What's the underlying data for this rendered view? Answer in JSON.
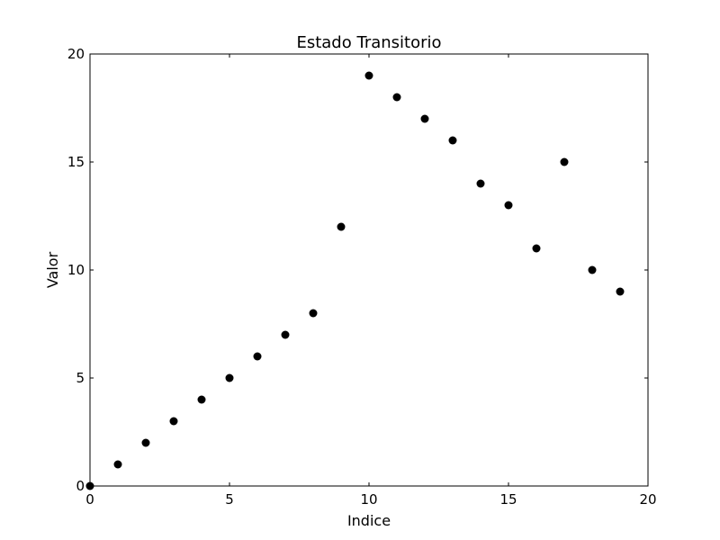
{
  "chart_data": {
    "type": "scatter",
    "title": "Estado Transitorio",
    "xlabel": "Indice",
    "ylabel": "Valor",
    "xlim": [
      0,
      20
    ],
    "ylim": [
      0,
      20
    ],
    "xticks": [
      "0",
      "5",
      "10",
      "15",
      "20"
    ],
    "yticks": [
      "0",
      "5",
      "10",
      "15",
      "20"
    ],
    "grid": false,
    "marker_color": "#000000",
    "points": [
      {
        "x": 0,
        "y": 0
      },
      {
        "x": 1,
        "y": 1
      },
      {
        "x": 2,
        "y": 2
      },
      {
        "x": 3,
        "y": 3
      },
      {
        "x": 4,
        "y": 4
      },
      {
        "x": 5,
        "y": 5
      },
      {
        "x": 6,
        "y": 6
      },
      {
        "x": 7,
        "y": 7
      },
      {
        "x": 8,
        "y": 8
      },
      {
        "x": 9,
        "y": 12
      },
      {
        "x": 10,
        "y": 19
      },
      {
        "x": 11,
        "y": 18
      },
      {
        "x": 12,
        "y": 17
      },
      {
        "x": 13,
        "y": 16
      },
      {
        "x": 14,
        "y": 14
      },
      {
        "x": 15,
        "y": 13
      },
      {
        "x": 16,
        "y": 11
      },
      {
        "x": 17,
        "y": 15
      },
      {
        "x": 18,
        "y": 10
      },
      {
        "x": 19,
        "y": 9
      }
    ]
  }
}
